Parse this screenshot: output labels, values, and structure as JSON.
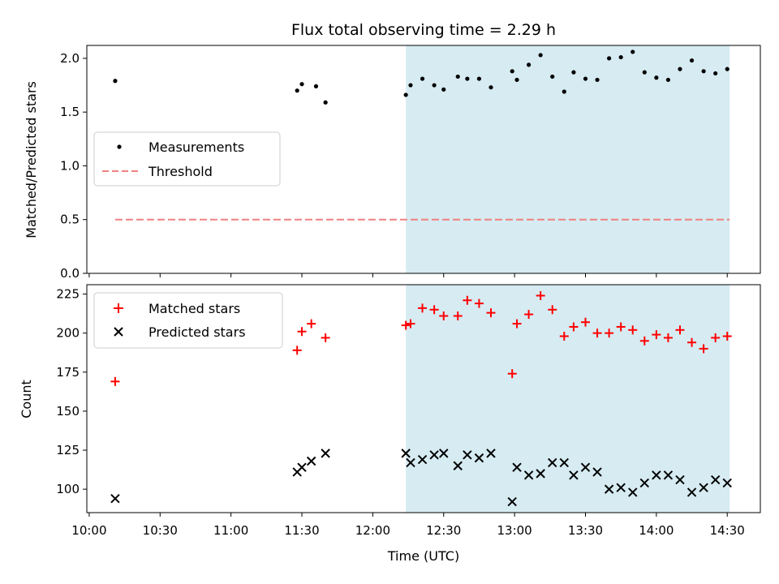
{
  "chart_data": {
    "type": "scatter",
    "title": "Flux total observing time = 2.29 h",
    "xlabel": "Time (UTC)",
    "x_ticks": [
      "10:00",
      "10:30",
      "11:00",
      "11:30",
      "12:00",
      "12:30",
      "13:00",
      "13:30",
      "14:00",
      "14:30"
    ],
    "xlim": [
      "09:59",
      "14:44"
    ],
    "shaded_interval": {
      "start": "12:14",
      "end": "14:31",
      "color": "#add8e6"
    },
    "panels": [
      {
        "ylabel": "Matched/Predicted stars",
        "ylim": [
          0,
          2.12
        ],
        "y_ticks": [
          "0.0",
          "0.5",
          "1.0",
          "1.5",
          "2.0"
        ],
        "legend": {
          "placement": "center-left"
        },
        "series": [
          {
            "name": "Measurements",
            "marker": "dot",
            "color": "#000000",
            "points": [
              [
                "10:11",
                1.79
              ],
              [
                "11:28",
                1.7
              ],
              [
                "11:30",
                1.76
              ],
              [
                "11:36",
                1.74
              ],
              [
                "11:40",
                1.59
              ],
              [
                "12:14",
                1.66
              ],
              [
                "12:16",
                1.75
              ],
              [
                "12:21",
                1.81
              ],
              [
                "12:26",
                1.75
              ],
              [
                "12:30",
                1.71
              ],
              [
                "12:36",
                1.83
              ],
              [
                "12:40",
                1.81
              ],
              [
                "12:45",
                1.81
              ],
              [
                "12:50",
                1.73
              ],
              [
                "12:59",
                1.88
              ],
              [
                "13:01",
                1.8
              ],
              [
                "13:06",
                1.94
              ],
              [
                "13:11",
                2.03
              ],
              [
                "13:16",
                1.83
              ],
              [
                "13:21",
                1.69
              ],
              [
                "13:25",
                1.87
              ],
              [
                "13:30",
                1.81
              ],
              [
                "13:35",
                1.8
              ],
              [
                "13:40",
                2.0
              ],
              [
                "13:45",
                2.01
              ],
              [
                "13:50",
                2.06
              ],
              [
                "13:55",
                1.87
              ],
              [
                "14:00",
                1.82
              ],
              [
                "14:05",
                1.8
              ],
              [
                "14:10",
                1.9
              ],
              [
                "14:15",
                1.98
              ],
              [
                "14:20",
                1.88
              ],
              [
                "14:25",
                1.86
              ],
              [
                "14:30",
                1.9
              ]
            ]
          },
          {
            "name": "Threshold",
            "marker": "dashed-line",
            "color": "#f08080",
            "points": [
              [
                "10:11",
                0.5
              ],
              [
                "14:31",
                0.5
              ]
            ]
          }
        ]
      },
      {
        "ylabel": "Count",
        "ylim": [
          85,
          231
        ],
        "y_ticks": [
          "100",
          "125",
          "150",
          "175",
          "200",
          "225"
        ],
        "legend": {
          "placement": "top-left"
        },
        "series": [
          {
            "name": "Matched stars",
            "marker": "plus",
            "color": "#ff0000",
            "points": [
              [
                "10:11",
                169
              ],
              [
                "11:28",
                189
              ],
              [
                "11:30",
                201
              ],
              [
                "11:34",
                206
              ],
              [
                "11:40",
                197
              ],
              [
                "12:14",
                205
              ],
              [
                "12:16",
                206
              ],
              [
                "12:21",
                216
              ],
              [
                "12:26",
                215
              ],
              [
                "12:30",
                211
              ],
              [
                "12:36",
                211
              ],
              [
                "12:40",
                221
              ],
              [
                "12:45",
                219
              ],
              [
                "12:50",
                213
              ],
              [
                "12:59",
                174
              ],
              [
                "13:01",
                206
              ],
              [
                "13:06",
                212
              ],
              [
                "13:11",
                224
              ],
              [
                "13:16",
                215
              ],
              [
                "13:21",
                198
              ],
              [
                "13:25",
                204
              ],
              [
                "13:30",
                207
              ],
              [
                "13:35",
                200
              ],
              [
                "13:40",
                200
              ],
              [
                "13:45",
                204
              ],
              [
                "13:50",
                202
              ],
              [
                "13:55",
                195
              ],
              [
                "14:00",
                199
              ],
              [
                "14:05",
                197
              ],
              [
                "14:10",
                202
              ],
              [
                "14:15",
                194
              ],
              [
                "14:20",
                190
              ],
              [
                "14:25",
                197
              ],
              [
                "14:30",
                198
              ]
            ]
          },
          {
            "name": "Predicted stars",
            "marker": "x",
            "color": "#000000",
            "points": [
              [
                "10:11",
                94
              ],
              [
                "11:28",
                111
              ],
              [
                "11:30",
                114
              ],
              [
                "11:34",
                118
              ],
              [
                "11:40",
                123
              ],
              [
                "12:14",
                123
              ],
              [
                "12:16",
                117
              ],
              [
                "12:21",
                119
              ],
              [
                "12:26",
                122
              ],
              [
                "12:30",
                123
              ],
              [
                "12:36",
                115
              ],
              [
                "12:40",
                122
              ],
              [
                "12:45",
                120
              ],
              [
                "12:50",
                123
              ],
              [
                "12:59",
                92
              ],
              [
                "13:01",
                114
              ],
              [
                "13:06",
                109
              ],
              [
                "13:11",
                110
              ],
              [
                "13:16",
                117
              ],
              [
                "13:21",
                117
              ],
              [
                "13:25",
                109
              ],
              [
                "13:30",
                114
              ],
              [
                "13:35",
                111
              ],
              [
                "13:40",
                100
              ],
              [
                "13:45",
                101
              ],
              [
                "13:50",
                98
              ],
              [
                "13:55",
                104
              ],
              [
                "14:00",
                109
              ],
              [
                "14:05",
                109
              ],
              [
                "14:10",
                106
              ],
              [
                "14:15",
                98
              ],
              [
                "14:20",
                101
              ],
              [
                "14:25",
                106
              ],
              [
                "14:30",
                104
              ]
            ]
          }
        ]
      }
    ]
  }
}
